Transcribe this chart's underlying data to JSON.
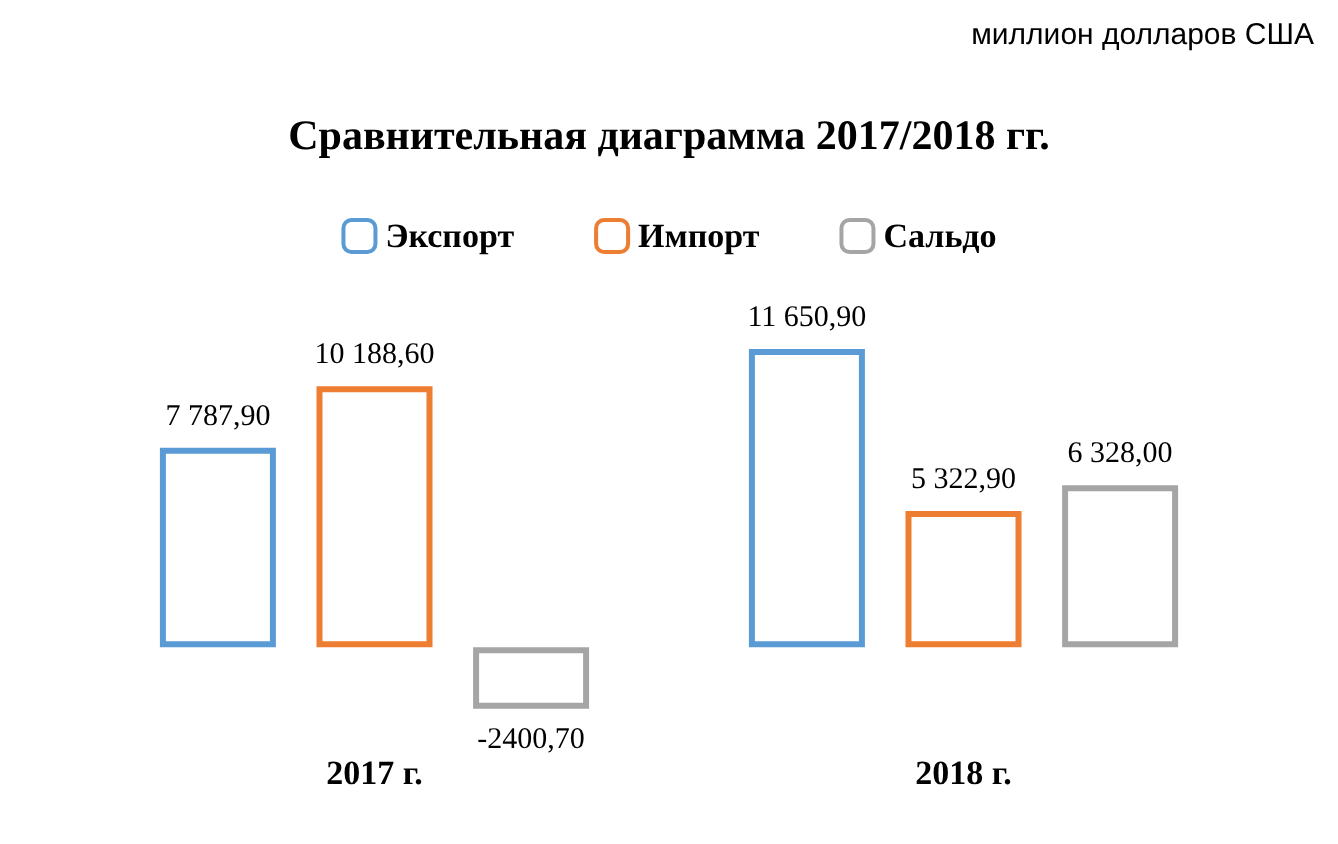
{
  "chart_data": {
    "type": "bar",
    "title": "Сравнительная диаграмма 2017/2018 гг.",
    "annotations": [
      "миллион долларов США"
    ],
    "categories": [
      "2017 г.",
      "2018 г."
    ],
    "series": [
      {
        "name": "Экспорт",
        "color": "#5b9bd5",
        "values": [
          7787.9,
          11650.9
        ],
        "value_labels": [
          "7 787,90",
          "11 650,90"
        ]
      },
      {
        "name": "Импорт",
        "color": "#ed7d31",
        "values": [
          10188.6,
          5322.9
        ],
        "value_labels": [
          "10 188,60",
          "5 322,90"
        ]
      },
      {
        "name": "Сальдо",
        "color": "#a5a5a5",
        "values": [
          -2400.7,
          6328.0
        ],
        "value_labels": [
          "-2400,70",
          "6 328,00"
        ]
      }
    ],
    "legend": "top",
    "grid": false,
    "tick_labels": "x"
  }
}
